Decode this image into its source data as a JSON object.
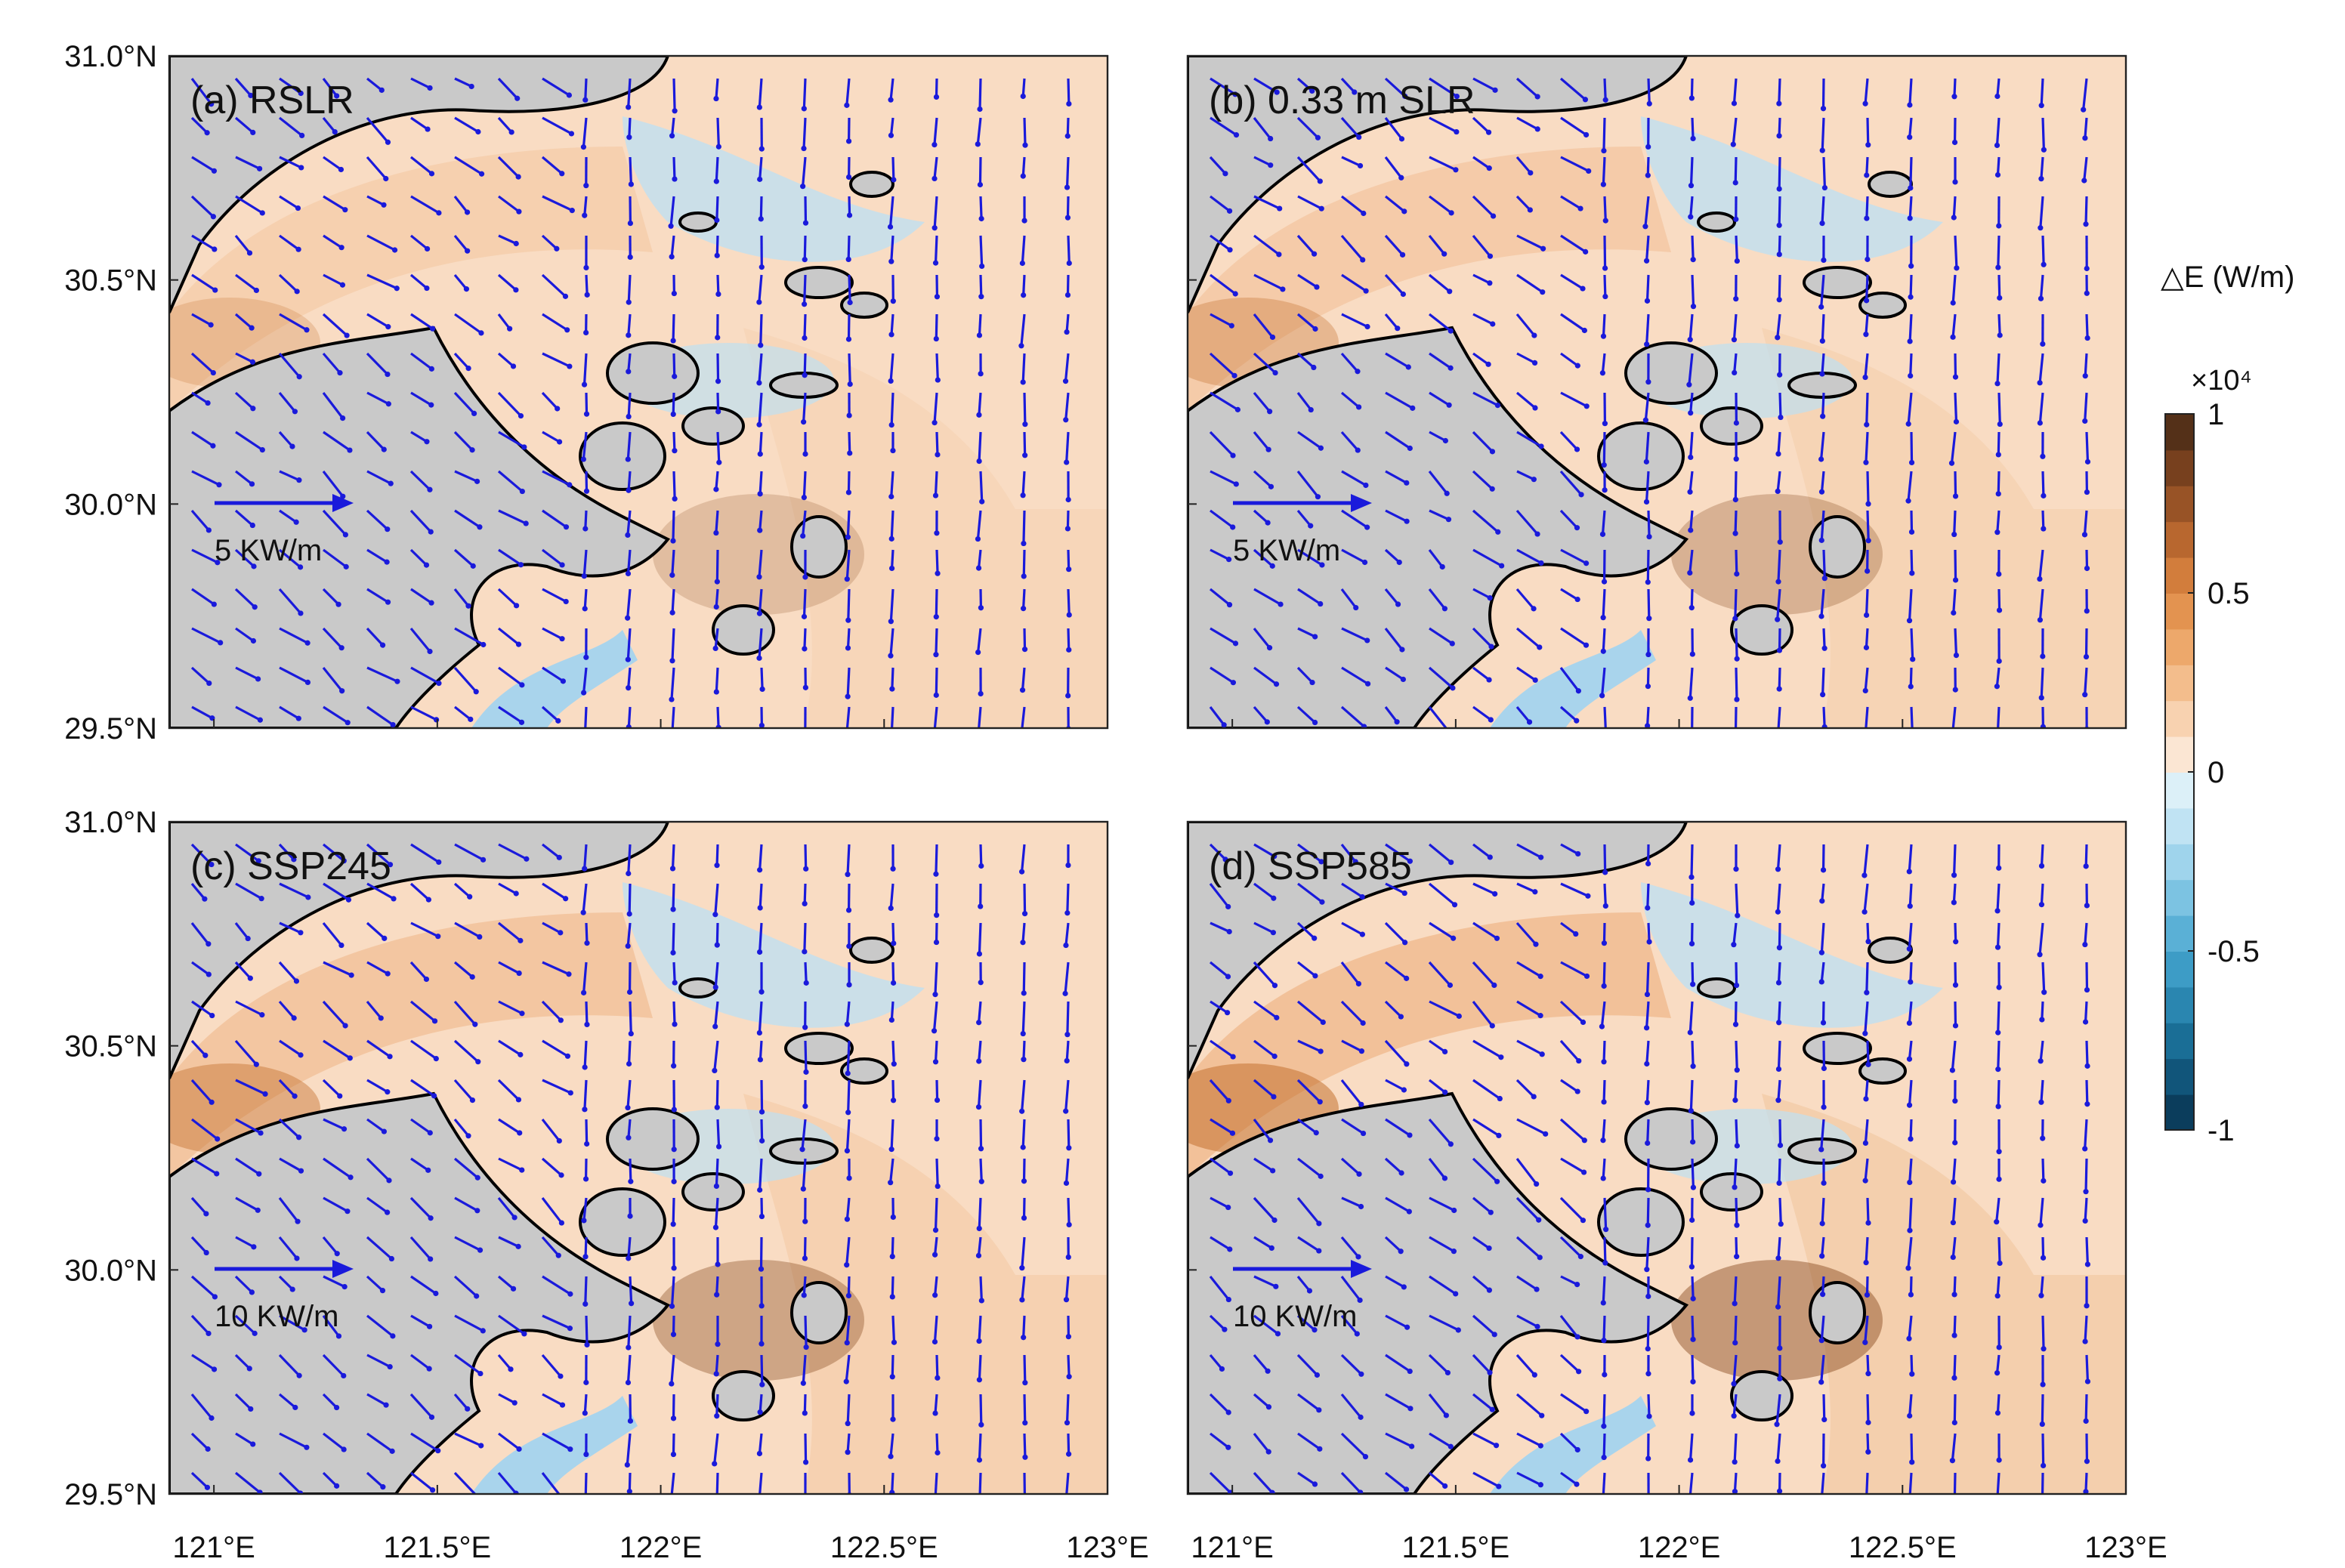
{
  "panels": [
    {
      "title": "(a) RSLR",
      "scale_label": "5 KW/m"
    },
    {
      "title": "(b) 0.33 m SLR",
      "scale_label": "5 KW/m"
    },
    {
      "title": "(c) SSP245",
      "scale_label": "10 KW/m"
    },
    {
      "title": "(d) SSP585",
      "scale_label": "10 KW/m"
    }
  ],
  "xlim": [
    120.9,
    123
  ],
  "xticks": [
    {
      "value": 121,
      "label": "121°E"
    },
    {
      "value": 121.5,
      "label": "121.5°E"
    },
    {
      "value": 122,
      "label": "122°E"
    },
    {
      "value": 122.5,
      "label": "122.5°E"
    },
    {
      "value": 123,
      "label": "123°E"
    }
  ],
  "ylim": [
    29.5,
    31
  ],
  "yticks": [
    {
      "value": 29.5,
      "label": "29.5°N"
    },
    {
      "value": 30,
      "label": "30.0°N"
    },
    {
      "value": 30.5,
      "label": "30.5°N"
    },
    {
      "value": 31,
      "label": "31.0°N"
    }
  ],
  "colorbar": {
    "title": "△E (W/m)",
    "multiplier": "×10⁴",
    "lim": [
      -1,
      1
    ],
    "ticks": [
      -1,
      -0.5,
      0,
      0.5,
      1
    ],
    "colors": [
      "#0b3d5c",
      "#11557a",
      "#1a6e96",
      "#2a86b0",
      "#3d9cc6",
      "#5ab0d6",
      "#7cc3e2",
      "#9fd4ec",
      "#c0e3f3",
      "#dcf0f8",
      "#fbe6d3",
      "#f8d2b0",
      "#f3bd8c",
      "#eda86b",
      "#e39350",
      "#d27d3c",
      "#b8672f",
      "#985326",
      "#77401e",
      "#543018"
    ]
  }
}
